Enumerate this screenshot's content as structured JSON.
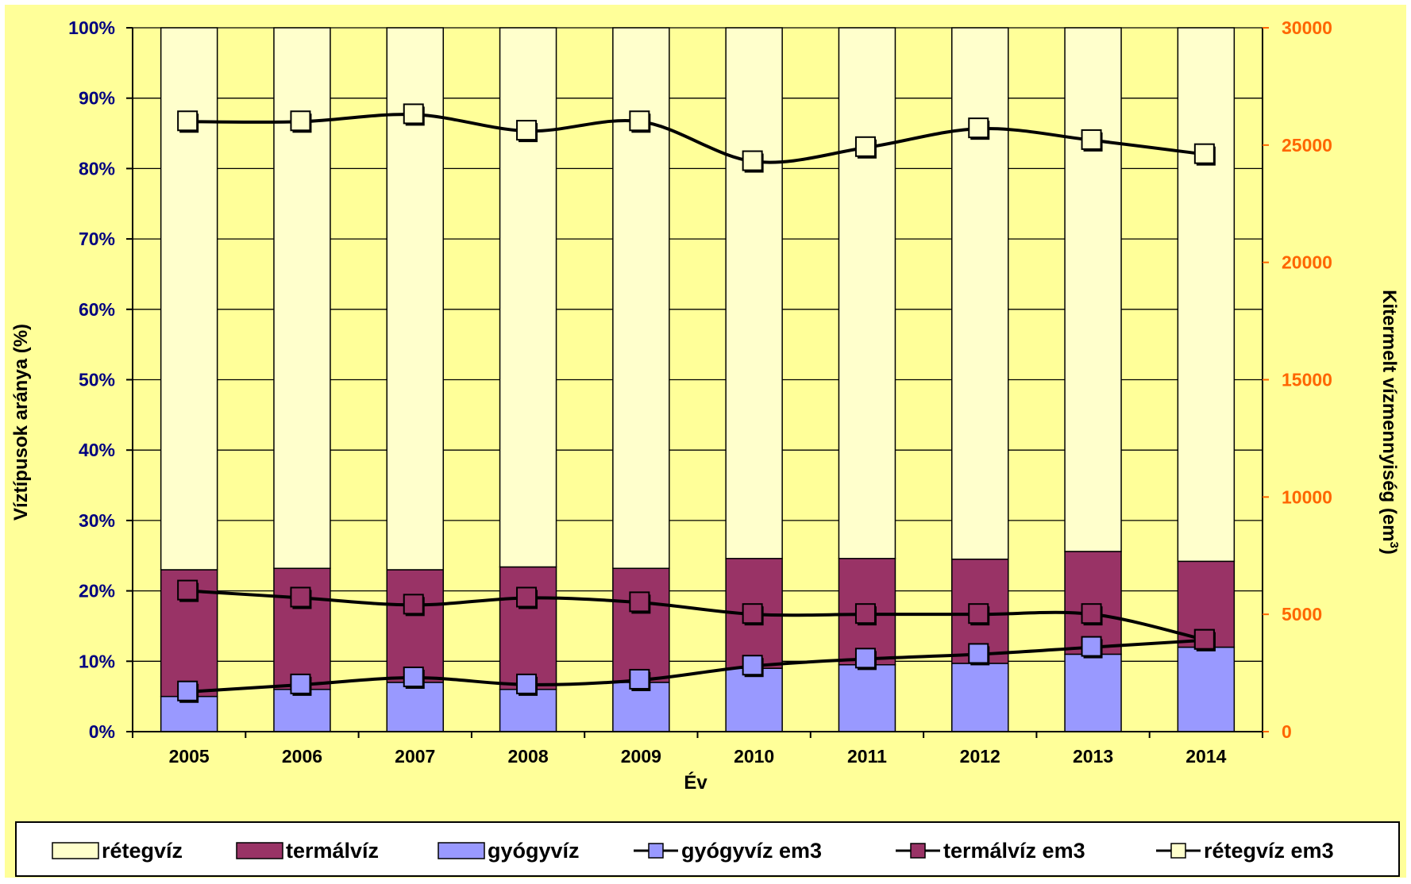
{
  "chart_data": {
    "type": "bar",
    "stacked": true,
    "title": "",
    "categories": [
      "2005",
      "2006",
      "2007",
      "2008",
      "2009",
      "2010",
      "2011",
      "2012",
      "2013",
      "2014"
    ],
    "xlabel": "Év",
    "ylabel_left": "Víztípusok aránya (%)",
    "ylabel_right_prefix": "Kitermelt vízmennyiség (em",
    "ylabel_right_sup": "3",
    "ylabel_right_suffix": ")",
    "y_left": {
      "min": 0,
      "max": 100,
      "ticks": [
        "0%",
        "10%",
        "20%",
        "30%",
        "40%",
        "50%",
        "60%",
        "70%",
        "80%",
        "90%",
        "100%"
      ]
    },
    "y_right": {
      "min": 0,
      "max": 30000,
      "ticks": [
        "0",
        "5000",
        "10000",
        "15000",
        "20000",
        "25000",
        "30000"
      ]
    },
    "grid": true,
    "legend_position": "bottom",
    "colors": {
      "background": "#FFFF99",
      "plot_area": "#FFFF99",
      "left_axis_text": "#000080",
      "right_axis_text": "#FF6600",
      "line": "#000000"
    },
    "bar_series": [
      {
        "name": "gyógyvíz",
        "color": "#9999FF",
        "values": [
          5,
          6,
          7,
          6,
          7,
          9,
          9.5,
          9.7,
          11,
          12
        ]
      },
      {
        "name": "termálvíz",
        "color": "#993366",
        "values": [
          18,
          17.2,
          16,
          17.4,
          16.2,
          15.6,
          15.1,
          14.8,
          14.6,
          12.2
        ]
      },
      {
        "name": "rétegvíz",
        "color": "#FFFFCC",
        "values": [
          77,
          76.8,
          77,
          76.6,
          76.8,
          75.4,
          75.4,
          75.5,
          74.4,
          75.8
        ]
      }
    ],
    "line_series": [
      {
        "name": "gyógyvíz em3",
        "marker_color": "#9999FF",
        "axis": "right",
        "values": [
          1700,
          2000,
          2300,
          2000,
          2200,
          2800,
          3100,
          3300,
          3600,
          3900
        ]
      },
      {
        "name": "termálvíz em3",
        "marker_color": "#993366",
        "axis": "right",
        "values": [
          6000,
          5700,
          5400,
          5700,
          5500,
          5000,
          5000,
          5000,
          5000,
          3900
        ]
      },
      {
        "name": "rétegvíz em3",
        "marker_color": "#FFFFCC",
        "axis": "right",
        "values": [
          26000,
          26000,
          26300,
          25600,
          26000,
          24300,
          24900,
          25700,
          25200,
          24600
        ]
      }
    ],
    "legend_order": [
      {
        "name": "rétegvíz",
        "kind": "bar",
        "color": "#FFFFCC"
      },
      {
        "name": "termálvíz",
        "kind": "bar",
        "color": "#993366"
      },
      {
        "name": "gyógyvíz",
        "kind": "bar",
        "color": "#9999FF"
      },
      {
        "name": "gyógyvíz em3",
        "kind": "line",
        "color": "#9999FF"
      },
      {
        "name": "termálvíz em3",
        "kind": "line",
        "color": "#993366"
      },
      {
        "name": "rétegvíz em3",
        "kind": "line",
        "color": "#FFFFCC"
      }
    ]
  }
}
